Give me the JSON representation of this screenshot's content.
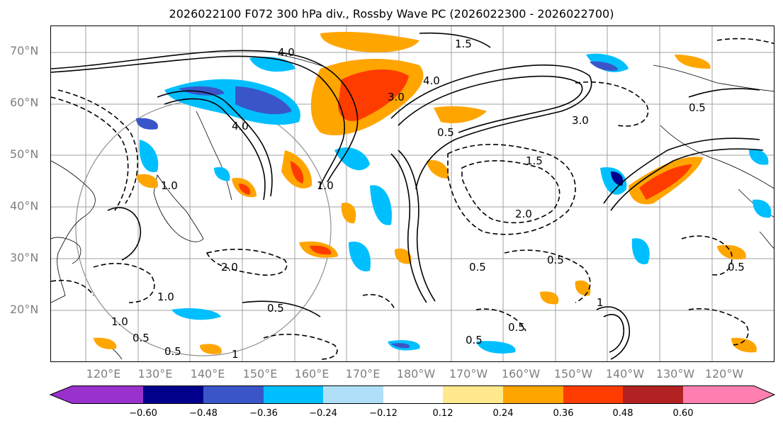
{
  "title": "2026022100 F072 300 hPa div., Rossby Wave PC (2026022300 - 2026022700)",
  "lat_labels": [
    "70°N",
    "60°N",
    "50°N",
    "40°N",
    "30°N",
    "20°N"
  ],
  "lon_labels": [
    "120°E",
    "130°E",
    "140°E",
    "150°E",
    "160°E",
    "170°E",
    "180°W",
    "170°W",
    "160°W",
    "150°W",
    "140°W",
    "130°W",
    "120°W"
  ],
  "colorbar": {
    "ticks": [
      "−0.60",
      "−0.48",
      "−0.36",
      "−0.24",
      "−0.12",
      "0.12",
      "0.24",
      "0.36",
      "0.48",
      "0.60"
    ],
    "colors": [
      "#9932cc",
      "#00008b",
      "#3a55c8",
      "#00bfff",
      "#b0e0f8",
      "#ffffff",
      "#ffe98c",
      "#ffa500",
      "#ff3c00",
      "#b22222",
      "#ff80b0"
    ]
  },
  "contour_labels": [
    "4.0",
    "4.0",
    "4.0",
    "3.0",
    "3.0",
    "2.0",
    "2.0",
    "1.5",
    "1.5",
    "1.0",
    "1.0",
    "1.0",
    "1.0",
    "0.5",
    "0.5",
    "0.5",
    "0.5",
    "0.5",
    "0.5",
    "0.5",
    "0.5",
    "0.5",
    "0.5",
    "1",
    "1"
  ]
}
